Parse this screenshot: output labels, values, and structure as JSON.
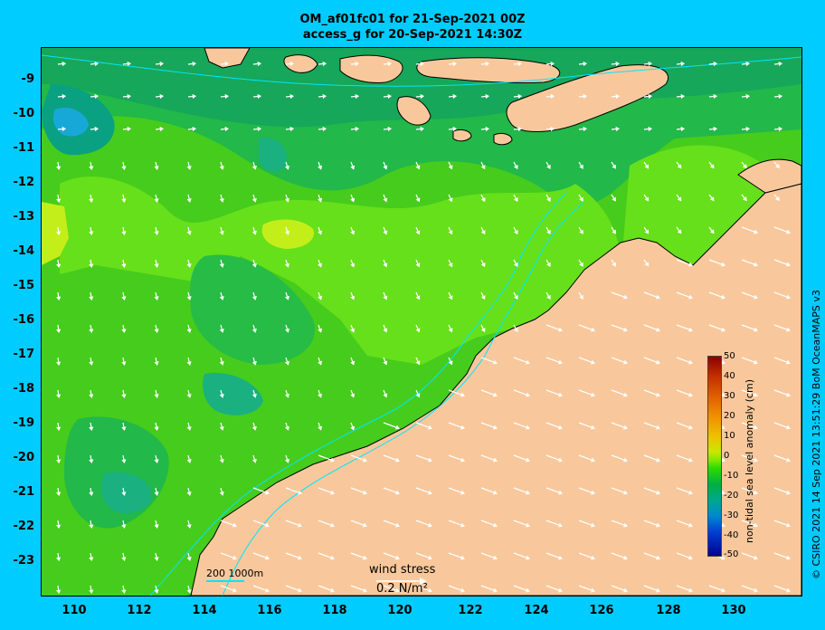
{
  "title_line1": "OM_af01fc01 for 21-Sep-2021 00Z",
  "title_line2": "access_g for 20-Sep-2021 14:30Z",
  "y_ticks": [
    "-9",
    "-10",
    "-11",
    "-12",
    "-13",
    "-14",
    "-15",
    "-16",
    "-17",
    "-18",
    "-19",
    "-20",
    "-21",
    "-22",
    "-23"
  ],
  "x_ticks": [
    "110",
    "112",
    "114",
    "116",
    "118",
    "120",
    "122",
    "124",
    "126",
    "128",
    "130"
  ],
  "colorbar": {
    "label": "non-tidal sea level anomaly (cm)",
    "ticks": [
      "50",
      "40",
      "30",
      "20",
      "10",
      "0",
      "-10",
      "-20",
      "-30",
      "-40",
      "-50"
    ]
  },
  "contour_legend": "200  1000m",
  "wind_legend": {
    "title": "wind stress",
    "value": "0.2 N/m²"
  },
  "credit": "© CSIRO 2021  14 Sep 2021 13:51:29 BoM OceanMAPS v3",
  "colors": {
    "background": "#00ccff",
    "land": "#f8c89c",
    "ocean_base": "#22b84a",
    "contour": "#00e5ff"
  }
}
